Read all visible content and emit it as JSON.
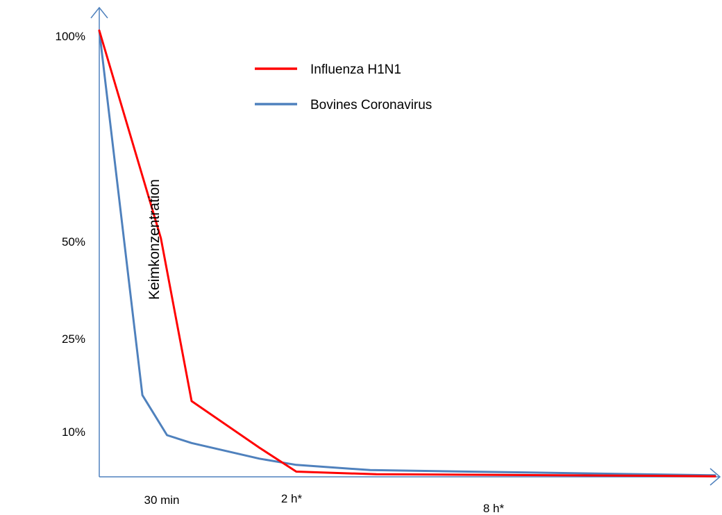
{
  "chart_data": {
    "type": "line",
    "title": "",
    "xlabel": "",
    "ylabel": "Keimkonzentration",
    "y_ticks": [
      "100%",
      "50%",
      "25%",
      "10%"
    ],
    "x_ticks": [
      "30 min",
      "2 h*",
      "8 h*"
    ],
    "grid": false,
    "legend_position": "top-center",
    "series": [
      {
        "name": "Influenza H1N1",
        "color": "#ff0000",
        "x": [
          0,
          0.1,
          0.15,
          0.26,
          0.32,
          0.45,
          0.6,
          0.9,
          1.0
        ],
        "y": [
          100,
          50,
          14,
          5.6,
          1.0,
          0.5,
          0.4,
          0.2,
          0.1
        ]
      },
      {
        "name": "Bovines Coronavirus",
        "color": "#4f81bd",
        "x": [
          0,
          0.07,
          0.11,
          0.15,
          0.26,
          0.32,
          0.44,
          0.6,
          1.0
        ],
        "y": [
          100,
          15,
          8,
          6.5,
          3.5,
          2.3,
          1.3,
          1.0,
          0.3
        ]
      }
    ],
    "xlim": [
      0,
      1
    ],
    "ylim": [
      0,
      100
    ]
  }
}
